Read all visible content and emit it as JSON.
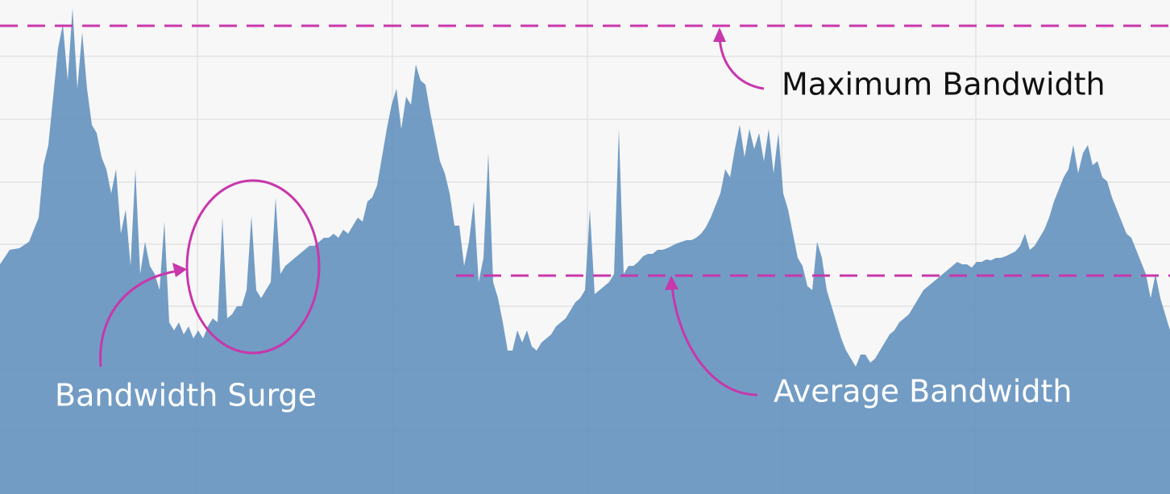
{
  "chart_data": {
    "type": "area",
    "color": "#5b8cbb",
    "grid": true,
    "xlim": [
      0,
      1452
    ],
    "ylim": [
      0,
      613
    ],
    "xticks": [
      245,
      487,
      729,
      970,
      1211
    ],
    "yticks": [
      78,
      155,
      233,
      310,
      387,
      465,
      543
    ],
    "x": [
      0,
      12,
      24,
      36,
      48,
      54,
      60,
      66,
      72,
      78,
      84,
      90,
      96,
      102,
      108,
      114,
      120,
      126,
      132,
      138,
      144,
      150,
      156,
      162,
      168,
      174,
      180,
      186,
      192,
      198,
      204,
      210,
      216,
      222,
      228,
      234,
      240,
      246,
      252,
      258,
      264,
      270,
      276,
      282,
      288,
      294,
      300,
      306,
      312,
      318,
      324,
      330,
      336,
      342,
      348,
      354,
      360,
      366,
      372,
      378,
      384,
      390,
      396,
      402,
      408,
      414,
      420,
      426,
      432,
      438,
      444,
      450,
      456,
      462,
      468,
      474,
      480,
      486,
      492,
      498,
      504,
      510,
      516,
      522,
      528,
      534,
      540,
      546,
      552,
      558,
      564,
      570,
      576,
      582,
      588,
      594,
      600,
      606,
      612,
      618,
      624,
      630,
      636,
      642,
      648,
      654,
      660,
      666,
      672,
      678,
      684,
      690,
      696,
      702,
      708,
      714,
      720,
      726,
      732,
      738,
      744,
      750,
      756,
      762,
      768,
      774,
      780,
      786,
      792,
      798,
      804,
      810,
      816,
      822,
      828,
      834,
      840,
      846,
      852,
      858,
      864,
      870,
      876,
      882,
      888,
      894,
      900,
      906,
      912,
      918,
      924,
      930,
      936,
      942,
      948,
      954,
      960,
      966,
      972,
      978,
      984,
      990,
      996,
      1002,
      1008,
      1014,
      1020,
      1026,
      1032,
      1038,
      1044,
      1050,
      1056,
      1062,
      1068,
      1074,
      1080,
      1086,
      1092,
      1098,
      1104,
      1110,
      1116,
      1122,
      1128,
      1134,
      1140,
      1146,
      1152,
      1158,
      1164,
      1170,
      1176,
      1182,
      1188,
      1194,
      1200,
      1206,
      1212,
      1218,
      1224,
      1230,
      1236,
      1242,
      1248,
      1254,
      1260,
      1266,
      1272,
      1278,
      1284,
      1290,
      1296,
      1302,
      1308,
      1314,
      1320,
      1326,
      1332,
      1338,
      1344,
      1350,
      1356,
      1362,
      1368,
      1374,
      1380,
      1386,
      1392,
      1398,
      1404,
      1410,
      1416,
      1422,
      1428,
      1434,
      1440,
      1446,
      1452
    ],
    "values": [
      285,
      303,
      305,
      313,
      343,
      408,
      433,
      493,
      553,
      583,
      513,
      603,
      503,
      573,
      503,
      458,
      448,
      418,
      403,
      373,
      403,
      323,
      353,
      283,
      403,
      273,
      313,
      283,
      273,
      253,
      338,
      213,
      203,
      213,
      198,
      208,
      193,
      203,
      193,
      208,
      218,
      213,
      343,
      218,
      223,
      233,
      233,
      253,
      345,
      253,
      243,
      253,
      263,
      368,
      273,
      283,
      288,
      293,
      298,
      303,
      308,
      308,
      313,
      318,
      318,
      323,
      318,
      328,
      323,
      333,
      343,
      338,
      363,
      368,
      383,
      418,
      453,
      483,
      503,
      453,
      493,
      483,
      533,
      513,
      508,
      473,
      443,
      413,
      398,
      373,
      333,
      333,
      283,
      313,
      363,
      263,
      293,
      423,
      263,
      243,
      213,
      178,
      178,
      203,
      188,
      203,
      183,
      178,
      188,
      193,
      198,
      208,
      213,
      218,
      228,
      238,
      243,
      253,
      353,
      248,
      253,
      258,
      263,
      273,
      453,
      273,
      283,
      283,
      288,
      295,
      298,
      298,
      303,
      303,
      305,
      308,
      311,
      313,
      315,
      315,
      318,
      323,
      331,
      343,
      358,
      373,
      403,
      393,
      428,
      458,
      418,
      453,
      428,
      448,
      413,
      453,
      398,
      448,
      373,
      353,
      323,
      293,
      283,
      258,
      253,
      313,
      293,
      253,
      233,
      213,
      193,
      178,
      168,
      158,
      173,
      173,
      163,
      168,
      178,
      188,
      198,
      203,
      213,
      218,
      223,
      233,
      243,
      253,
      258,
      263,
      268,
      273,
      278,
      283,
      288,
      285,
      285,
      281,
      288,
      288,
      291,
      290,
      293,
      293,
      295,
      298,
      301,
      308,
      323,
      303,
      308,
      318,
      328,
      343,
      363,
      378,
      393,
      403,
      433,
      398,
      423,
      433,
      408,
      413,
      393,
      388,
      368,
      353,
      338,
      323,
      318,
      303,
      288,
      273,
      243,
      273,
      243,
      223,
      203
    ],
    "reference_lines": [
      {
        "value": 581,
        "label": "Maximum Bandwidth",
        "color": "#c837ab",
        "x_from": 0
      },
      {
        "value": 271,
        "label": "Average Bandwidth",
        "color": "#c837ab",
        "x_from": 566
      }
    ],
    "annotations": [
      "Bandwidth Surge"
    ]
  }
}
